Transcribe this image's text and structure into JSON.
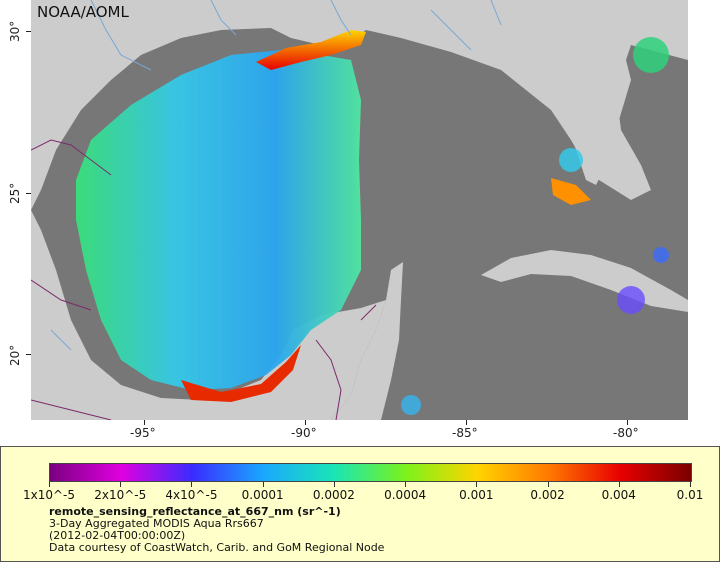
{
  "map": {
    "credit": "NOAA/AOML",
    "lat_labels": [
      "30°",
      "25°",
      "20°"
    ],
    "lon_labels": [
      "-95°",
      "-90°",
      "-85°",
      "-80°"
    ],
    "colors": {
      "ocean_nodata": "#777777",
      "land": "#cccccc",
      "rivers": "#7aa6d6",
      "borders": "#7a2a6a"
    }
  },
  "legend": {
    "tick_labels": [
      "1x10^-5",
      "2x10^-5",
      "4x10^-5",
      "0.0001",
      "0.0002",
      "0.0004",
      "0.001",
      "0.002",
      "0.004",
      "0.01"
    ],
    "title": "remote_sensing_reflectance_at_667_nm (sr^-1)",
    "line1": "3-Day Aggregated MODIS Aqua Rrs667",
    "line2": "(2012-02-04T00:00:00Z)",
    "line3": "Data courtesy of CoastWatch, Carib. and GoM Regional Node",
    "colormap": [
      "#7a0080",
      "#e000e0",
      "#3a2cff",
      "#1aa8ff",
      "#19e6b4",
      "#7cf21a",
      "#ffd400",
      "#ff7a00",
      "#e80000",
      "#7a0000"
    ]
  }
}
